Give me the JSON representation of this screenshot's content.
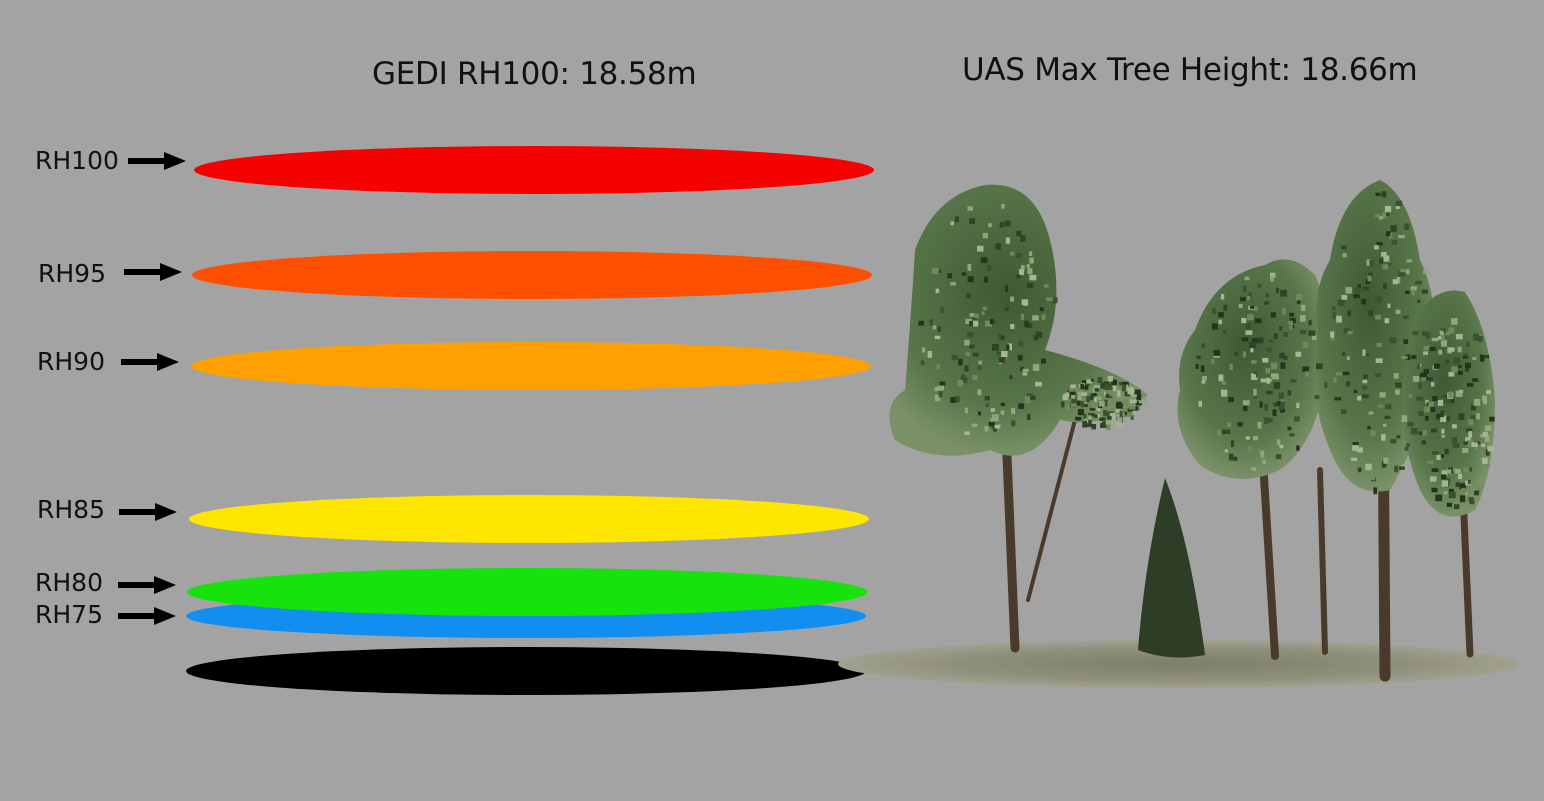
{
  "titles": {
    "gedi": "GEDI RH100: 18.58m",
    "uas": "UAS Max Tree Height: 18.66m"
  },
  "rh_layers": [
    {
      "label": "RH100",
      "color": "#f70000"
    },
    {
      "label": "RH95",
      "color": "#ff4f00"
    },
    {
      "label": "RH90",
      "color": "#ff9f00"
    },
    {
      "label": "RH85",
      "color": "#ffe600"
    },
    {
      "label": "RH80",
      "color": "#16e20c"
    },
    {
      "label": "RH75",
      "color": "#118ef0"
    }
  ],
  "ground_layer": {
    "color": "#000000"
  },
  "background_color": "#a3a3a3",
  "tree_point_cloud": {
    "foliage_color": "#4e6b40",
    "trunk_color": "#4a3a2c",
    "ground_color": "#8f907c"
  }
}
